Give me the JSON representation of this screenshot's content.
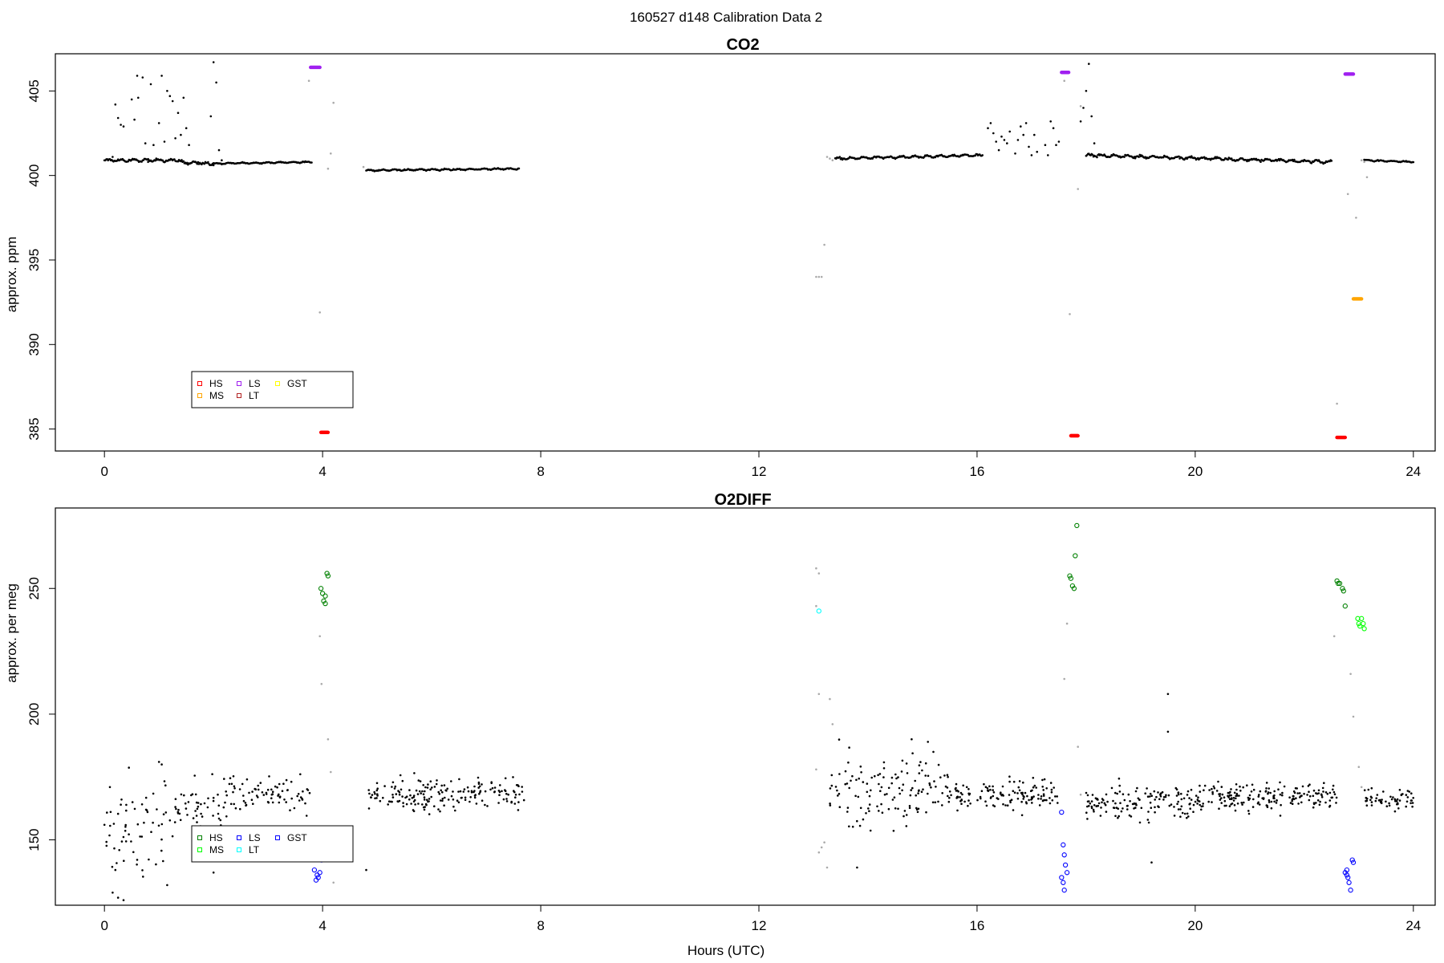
{
  "figure": {
    "suptitle": "160527   d148   Calibration Data 2",
    "xlabel": "Hours (UTC)"
  },
  "chart_data": [
    {
      "type": "scatter",
      "title": "CO2",
      "xlabel": "",
      "ylabel": "approx. ppm",
      "xlim": [
        -0.9,
        24.4
      ],
      "ylim": [
        383.7,
        407.2
      ],
      "xticks": [
        0,
        4,
        8,
        12,
        16,
        20,
        24
      ],
      "yticks": [
        385,
        390,
        395,
        400,
        405
      ],
      "legend": {
        "placement": "lower-left",
        "entries": [
          {
            "label": "HS",
            "color": "#ff0000"
          },
          {
            "label": "MS",
            "color": "#ffa500"
          },
          {
            "label": "LS",
            "color": "#a020f0"
          },
          {
            "label": "LT",
            "color": "#b22222"
          },
          {
            "label": "GST",
            "color": "#ffff00"
          }
        ]
      },
      "baseline": [
        {
          "x": [
            0.0,
            1.35
          ],
          "y": [
            400.9,
            400.9
          ],
          "jitter": 0.1
        },
        {
          "x": [
            1.35,
            2.0
          ],
          "y": [
            400.8,
            400.7
          ],
          "jitter": 0.15
        },
        {
          "x": [
            2.0,
            3.8
          ],
          "y": [
            400.7,
            400.8
          ],
          "jitter": 0.05
        },
        {
          "x": [
            4.8,
            7.6
          ],
          "y": [
            400.3,
            400.4
          ],
          "jitter": 0.05
        },
        {
          "x": [
            13.4,
            16.1
          ],
          "y": [
            401.0,
            401.2
          ],
          "jitter": 0.08
        },
        {
          "x": [
            18.0,
            22.5
          ],
          "y": [
            401.2,
            400.8
          ],
          "jitter": 0.1
        },
        {
          "x": [
            23.1,
            24.0
          ],
          "y": [
            400.9,
            400.8
          ],
          "jitter": 0.05
        }
      ],
      "scatter": [
        [
          0.15,
          401.1
        ],
        [
          0.2,
          404.2
        ],
        [
          0.25,
          403.4
        ],
        [
          0.3,
          403.0
        ],
        [
          0.35,
          402.9
        ],
        [
          0.45,
          400.9
        ],
        [
          0.5,
          404.5
        ],
        [
          0.55,
          403.3
        ],
        [
          0.6,
          405.9
        ],
        [
          0.62,
          404.6
        ],
        [
          0.7,
          405.8
        ],
        [
          0.75,
          401.9
        ],
        [
          0.8,
          400.8
        ],
        [
          0.85,
          405.4
        ],
        [
          0.9,
          401.8
        ],
        [
          0.95,
          401.0
        ],
        [
          1.0,
          403.1
        ],
        [
          1.05,
          405.9
        ],
        [
          1.1,
          402.0
        ],
        [
          1.15,
          405.0
        ],
        [
          1.2,
          404.7
        ],
        [
          1.25,
          404.4
        ],
        [
          1.3,
          402.2
        ],
        [
          1.35,
          403.7
        ],
        [
          1.4,
          402.4
        ],
        [
          1.45,
          404.6
        ],
        [
          1.5,
          402.8
        ],
        [
          1.55,
          401.8
        ],
        [
          1.95,
          403.5
        ],
        [
          2.0,
          406.7
        ],
        [
          2.05,
          405.5
        ],
        [
          2.1,
          401.5
        ],
        [
          2.15,
          400.9
        ],
        [
          16.2,
          402.8
        ],
        [
          16.25,
          403.1
        ],
        [
          16.3,
          402.5
        ],
        [
          16.35,
          402.0
        ],
        [
          16.4,
          401.5
        ],
        [
          16.45,
          402.3
        ],
        [
          16.5,
          402.1
        ],
        [
          16.55,
          401.9
        ],
        [
          16.6,
          402.6
        ],
        [
          16.7,
          401.3
        ],
        [
          16.75,
          402.1
        ],
        [
          16.8,
          402.9
        ],
        [
          16.85,
          402.4
        ],
        [
          16.9,
          403.1
        ],
        [
          16.95,
          401.7
        ],
        [
          17.0,
          401.2
        ],
        [
          17.05,
          402.4
        ],
        [
          17.1,
          401.4
        ],
        [
          17.25,
          401.8
        ],
        [
          17.3,
          401.2
        ],
        [
          17.35,
          403.2
        ],
        [
          17.4,
          402.8
        ],
        [
          17.45,
          401.8
        ],
        [
          17.5,
          402.0
        ],
        [
          17.9,
          403.2
        ],
        [
          17.95,
          404.0
        ],
        [
          18.0,
          405.0
        ],
        [
          18.05,
          406.6
        ],
        [
          18.1,
          403.5
        ],
        [
          18.15,
          401.9
        ]
      ],
      "gray_points": [
        [
          3.75,
          405.6
        ],
        [
          3.95,
          391.9
        ],
        [
          4.1,
          400.4
        ],
        [
          4.15,
          401.3
        ],
        [
          4.2,
          404.3
        ],
        [
          4.75,
          400.5
        ],
        [
          13.05,
          394.0
        ],
        [
          13.1,
          394.0
        ],
        [
          13.15,
          394.0
        ],
        [
          13.2,
          395.9
        ],
        [
          13.25,
          401.1
        ],
        [
          13.3,
          401.0
        ],
        [
          13.35,
          400.9
        ],
        [
          17.6,
          405.6
        ],
        [
          17.7,
          391.8
        ],
        [
          17.85,
          399.2
        ],
        [
          17.9,
          404.1
        ],
        [
          22.6,
          386.5
        ],
        [
          22.8,
          398.9
        ],
        [
          22.95,
          397.5
        ],
        [
          23.15,
          399.9
        ],
        [
          23.05,
          400.9
        ],
        [
          23.1,
          400.8
        ]
      ],
      "calibrations": [
        {
          "label": "LS",
          "color": "#a020f0",
          "x0": 3.78,
          "x1": 3.95,
          "y": 406.4
        },
        {
          "label": "HS",
          "color": "#ff0000",
          "x0": 3.97,
          "x1": 4.1,
          "y": 384.8
        },
        {
          "label": "LS",
          "color": "#a020f0",
          "x0": 17.55,
          "x1": 17.68,
          "y": 406.1
        },
        {
          "label": "HS",
          "color": "#ff0000",
          "x0": 17.72,
          "x1": 17.85,
          "y": 384.6
        },
        {
          "label": "HS",
          "color": "#ff0000",
          "x0": 22.6,
          "x1": 22.75,
          "y": 384.5
        },
        {
          "label": "LS",
          "color": "#a020f0",
          "x0": 22.75,
          "x1": 22.9,
          "y": 406.0
        },
        {
          "label": "MS",
          "color": "#ffa500",
          "x0": 22.9,
          "x1": 23.05,
          "y": 392.7
        }
      ]
    },
    {
      "type": "scatter",
      "title": "O2DIFF",
      "xlabel": "Hours (UTC)",
      "ylabel": "approx. per meg",
      "xlim": [
        -0.9,
        24.4
      ],
      "ylim": [
        124.0,
        282.0
      ],
      "xticks": [
        0,
        4,
        8,
        12,
        16,
        20,
        24
      ],
      "yticks": [
        150,
        200,
        250
      ],
      "legend": {
        "placement": "lower-left",
        "entries": [
          {
            "label": "HS",
            "color": "#008000"
          },
          {
            "label": "MS",
            "color": "#00ff00"
          },
          {
            "label": "LS",
            "color": "#0000ff"
          },
          {
            "label": "LT",
            "color": "#00ffff"
          },
          {
            "label": "GST",
            "color": "#0000ff"
          }
        ]
      },
      "noise_segments": [
        {
          "x": [
            0.0,
            0.6
          ],
          "center": 150,
          "spread": 22,
          "n": 30
        },
        {
          "x": [
            0.6,
            1.3
          ],
          "center": 155,
          "spread": 18,
          "n": 30
        },
        {
          "x": [
            1.3,
            2.2
          ],
          "center": 164,
          "spread": 10,
          "n": 45
        },
        {
          "x": [
            2.2,
            3.8
          ],
          "center": 168,
          "spread": 7,
          "n": 80
        },
        {
          "x": [
            4.8,
            7.7
          ],
          "center": 168,
          "spread": 6,
          "n": 190
        },
        {
          "x": [
            13.3,
            15.5
          ],
          "center": 170,
          "spread": 13,
          "n": 130
        },
        {
          "x": [
            15.5,
            17.5
          ],
          "center": 168,
          "spread": 6,
          "n": 130
        },
        {
          "x": [
            18.0,
            20.0
          ],
          "center": 165,
          "spread": 7,
          "n": 140
        },
        {
          "x": [
            20.0,
            22.6
          ],
          "center": 167,
          "spread": 5,
          "n": 190
        },
        {
          "x": [
            23.1,
            24.0
          ],
          "center": 166,
          "spread": 4,
          "n": 60
        }
      ],
      "scatter": [
        [
          0.1,
          171
        ],
        [
          0.15,
          129
        ],
        [
          0.2,
          138
        ],
        [
          0.25,
          127
        ],
        [
          0.3,
          164
        ],
        [
          0.35,
          126
        ],
        [
          1.0,
          181
        ],
        [
          1.05,
          180
        ],
        [
          1.15,
          132
        ],
        [
          2.0,
          137
        ],
        [
          14.8,
          190
        ],
        [
          15.1,
          189
        ],
        [
          15.2,
          185
        ],
        [
          19.5,
          208
        ],
        [
          19.5,
          193
        ],
        [
          19.2,
          141
        ],
        [
          4.8,
          138
        ],
        [
          13.8,
          139
        ]
      ],
      "gray_points": [
        [
          3.95,
          231
        ],
        [
          3.98,
          212
        ],
        [
          4.1,
          190
        ],
        [
          4.15,
          177
        ],
        [
          4.2,
          133
        ],
        [
          13.05,
          258
        ],
        [
          13.1,
          256
        ],
        [
          13.05,
          243
        ],
        [
          13.1,
          208
        ],
        [
          13.05,
          178
        ],
        [
          13.1,
          145
        ],
        [
          13.15,
          147
        ],
        [
          13.2,
          149
        ],
        [
          13.25,
          139
        ],
        [
          13.3,
          206
        ],
        [
          13.35,
          196
        ],
        [
          17.65,
          236
        ],
        [
          17.6,
          214
        ],
        [
          17.85,
          187
        ],
        [
          17.9,
          168
        ],
        [
          22.55,
          231
        ],
        [
          22.85,
          216
        ],
        [
          22.9,
          199
        ],
        [
          23.0,
          179
        ],
        [
          23.05,
          171
        ]
      ],
      "calibrations": [
        {
          "label": "LS",
          "color": "#0000ff",
          "points": [
            [
              3.85,
              138
            ],
            [
              3.9,
              136
            ],
            [
              3.95,
              137
            ],
            [
              3.98,
              142
            ],
            [
              3.88,
              134
            ],
            [
              3.92,
              135
            ]
          ]
        },
        {
          "label": "HS",
          "color": "#008000",
          "points": [
            [
              3.97,
              250
            ],
            [
              4.0,
              248
            ],
            [
              4.02,
              245
            ],
            [
              4.05,
              247
            ],
            [
              4.08,
              256
            ],
            [
              4.1,
              255
            ],
            [
              4.05,
              244
            ]
          ]
        },
        {
          "label": "LT",
          "color": "#00ffff",
          "points": [
            [
              13.1,
              241
            ]
          ]
        },
        {
          "label": "LS",
          "color": "#0000ff",
          "points": [
            [
              17.55,
              161
            ],
            [
              17.58,
              148
            ],
            [
              17.6,
              144
            ],
            [
              17.62,
              140
            ],
            [
              17.65,
              137
            ],
            [
              17.55,
              135
            ],
            [
              17.58,
              133
            ],
            [
              17.6,
              130
            ]
          ]
        },
        {
          "label": "HS",
          "color": "#008000",
          "points": [
            [
              17.7,
              255
            ],
            [
              17.72,
              254
            ],
            [
              17.75,
              251
            ],
            [
              17.78,
              250
            ],
            [
              17.8,
              263
            ],
            [
              17.83,
              275
            ]
          ]
        },
        {
          "label": "HS",
          "color": "#008000",
          "points": [
            [
              22.6,
              253
            ],
            [
              22.65,
              252
            ],
            [
              22.7,
              250
            ],
            [
              22.72,
              249
            ],
            [
              22.75,
              243
            ],
            [
              22.62,
              252
            ]
          ]
        },
        {
          "label": "LS",
          "color": "#0000ff",
          "points": [
            [
              22.75,
              137
            ],
            [
              22.78,
              138
            ],
            [
              22.8,
              135
            ],
            [
              22.82,
              133
            ],
            [
              22.85,
              130
            ],
            [
              22.88,
              142
            ],
            [
              22.9,
              141
            ],
            [
              22.78,
              136
            ]
          ]
        },
        {
          "label": "MS",
          "color": "#00ff00",
          "points": [
            [
              22.98,
              238
            ],
            [
              23.0,
              236
            ],
            [
              23.02,
              235
            ],
            [
              23.05,
              238
            ],
            [
              23.08,
              236
            ],
            [
              23.1,
              234
            ]
          ]
        }
      ]
    }
  ]
}
